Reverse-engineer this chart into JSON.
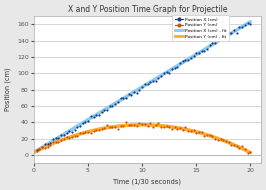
{
  "title": "X and Y Position Time Graph for Projectile",
  "xlabel": "Time (1/30 seconds)",
  "ylabel": "Position (cm)",
  "xlim": [
    0,
    21
  ],
  "ylim": [
    -10,
    170
  ],
  "yticks": [
    0,
    20,
    40,
    60,
    80,
    100,
    120,
    140,
    160
  ],
  "xticks": [
    0,
    5,
    10,
    15,
    20
  ],
  "bg_color": "#e8e8e8",
  "plot_bg_color": "#ffffff",
  "grid_color": "#d0d0d0",
  "scatter_x_color": "#1a3a8c",
  "scatter_y_color": "#cc5500",
  "fit_x_color": "#88ccee",
  "fit_y_color": "#ffaa33",
  "legend_labels": [
    "Position X (cm)",
    "Position Y (cm)",
    "Position X (cm) - fit",
    "Position Y (cm) - fit"
  ],
  "t_max": 20,
  "x_slope": 8.0,
  "x_intercept": 3,
  "y_a": -0.34,
  "y_b": 6.8,
  "y_c": 3,
  "n_points": 80,
  "noise_scale": 1.5,
  "noise_seed": 42
}
